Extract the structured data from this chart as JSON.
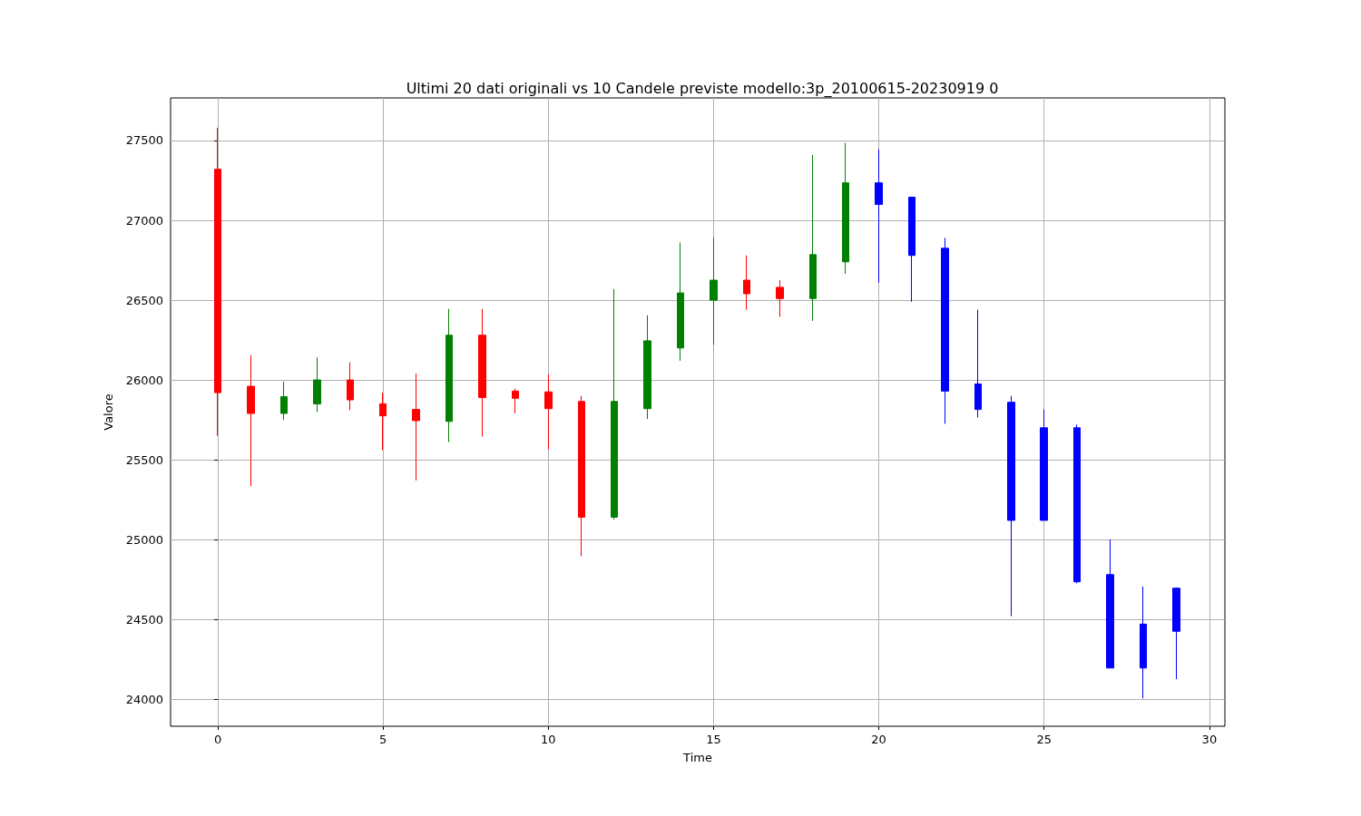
{
  "chart_data": {
    "type": "candlestick",
    "title": "Ultimi 20 dati originali vs 10 Candele previste modello:3p_20100615-20230919 0",
    "xlabel": "Time",
    "ylabel": "Valore",
    "x": [
      0,
      1,
      2,
      3,
      4,
      5,
      6,
      7,
      8,
      9,
      10,
      11,
      12,
      13,
      14,
      15,
      16,
      17,
      18,
      19,
      20,
      21,
      22,
      23,
      24,
      25,
      26,
      27,
      28,
      29
    ],
    "ohlc": [
      [
        27320,
        27580,
        25650,
        25920
      ],
      [
        25960,
        26155,
        25335,
        25790
      ],
      [
        25790,
        25990,
        25750,
        25895
      ],
      [
        25850,
        26140,
        25800,
        26000
      ],
      [
        26000,
        26110,
        25810,
        25875
      ],
      [
        25850,
        25920,
        25560,
        25775
      ],
      [
        25815,
        26040,
        25370,
        25745
      ],
      [
        25740,
        26445,
        25610,
        26280
      ],
      [
        26280,
        26445,
        25645,
        25890
      ],
      [
        25930,
        25945,
        25790,
        25885
      ],
      [
        25925,
        26035,
        25565,
        25820
      ],
      [
        25865,
        25900,
        24895,
        25140
      ],
      [
        25140,
        26570,
        25125,
        25865
      ],
      [
        25820,
        26405,
        25755,
        26245
      ],
      [
        26200,
        26860,
        26120,
        26545
      ],
      [
        26500,
        26890,
        26220,
        26625
      ],
      [
        26625,
        26780,
        26440,
        26540
      ],
      [
        26580,
        26625,
        26395,
        26510
      ],
      [
        26510,
        27410,
        26370,
        26785
      ],
      [
        26740,
        27485,
        26665,
        27235
      ],
      [
        27235,
        27445,
        26610,
        27100
      ],
      [
        27145,
        27145,
        26490,
        26780
      ],
      [
        26825,
        26890,
        25725,
        25930
      ],
      [
        25975,
        26440,
        25765,
        25815
      ],
      [
        25860,
        25900,
        24520,
        25120
      ],
      [
        25700,
        25815,
        25120,
        25120
      ],
      [
        25700,
        25720,
        24725,
        24735
      ],
      [
        24780,
        25000,
        24195,
        24195
      ],
      [
        24470,
        24705,
        24005,
        24195
      ],
      [
        24695,
        24700,
        24125,
        24425
      ]
    ],
    "colors": [
      "#ff0000",
      "#ff0000",
      "#008000",
      "#008000",
      "#ff0000",
      "#ff0000",
      "#ff0000",
      "#008000",
      "#ff0000",
      "#ff0000",
      "#ff0000",
      "#ff0000",
      "#008000",
      "#008000",
      "#008000",
      "#008000",
      "#ff0000",
      "#ff0000",
      "#008000",
      "#008000",
      "#0000ff",
      "#0000ff",
      "#0000ff",
      "#0000ff",
      "#0000ff",
      "#0000ff",
      "#0000ff",
      "#0000ff",
      "#0000ff",
      "#0000ff"
    ],
    "xlim": [
      -1.43,
      30.47
    ],
    "xticks": [
      0,
      5,
      10,
      15,
      20,
      25,
      30
    ],
    "ylim": [
      23830,
      27767
    ],
    "yticks": [
      24000,
      24500,
      25000,
      25500,
      26000,
      26500,
      27000,
      27500
    ],
    "grid": true
  }
}
